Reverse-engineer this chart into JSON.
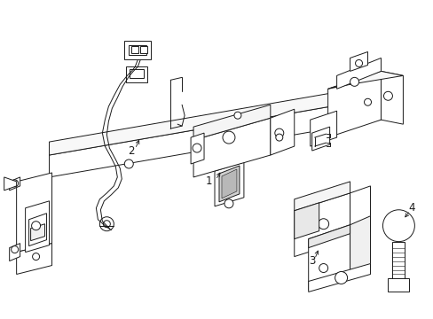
{
  "background_color": "#ffffff",
  "line_color": "#1a1a1a",
  "line_width": 0.7,
  "fig_width": 4.89,
  "fig_height": 3.6,
  "dpi": 100,
  "label_fontsize": 8.5
}
